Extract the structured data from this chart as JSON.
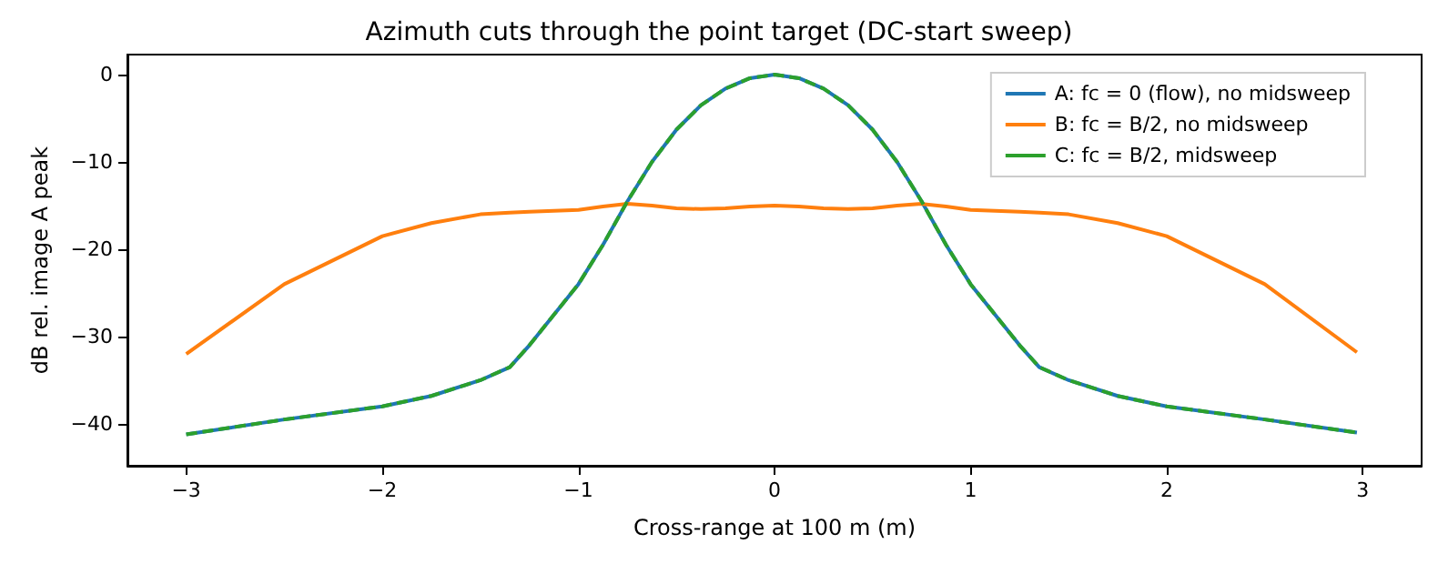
{
  "chart_data": {
    "type": "line",
    "title": "Azimuth cuts through the point target (DC-start sweep)",
    "xlabel": "Cross-range at 100 m (m)",
    "ylabel": "dB rel. image A peak",
    "x": [
      -3,
      -2.5,
      -2,
      -1.75,
      -1.5,
      -1.35,
      -1.25,
      -1,
      -0.875,
      -0.75,
      -0.625,
      -0.5,
      -0.375,
      -0.25,
      -0.125,
      0,
      0.125,
      0.25,
      0.375,
      0.5,
      0.625,
      0.75,
      0.875,
      1,
      1.25,
      1.35,
      1.5,
      1.75,
      2,
      2.5,
      2.97
    ],
    "series": [
      {
        "name": "A: fc = 0 (flow), no midsweep",
        "color": "#1f77b4",
        "line_style": "solid",
        "values": [
          -41.2,
          -39.5,
          -38,
          -36.8,
          -35,
          -33.5,
          -31,
          -24,
          -19.5,
          -14.5,
          -10,
          -6.3,
          -3.5,
          -1.6,
          -0.4,
          0,
          -0.4,
          -1.6,
          -3.5,
          -6.3,
          -10,
          -14.5,
          -19.5,
          -24,
          -31,
          -33.5,
          -35,
          -36.8,
          -38,
          -39.5,
          -41
        ]
      },
      {
        "name": "B: fc = B/2, no midsweep",
        "color": "#ff7f0e",
        "line_style": "solid",
        "values": [
          -32,
          -24,
          -18.5,
          -17,
          -16,
          -15.8,
          -15.7,
          -15.5,
          -15.1,
          -14.8,
          -15,
          -15.3,
          -15.4,
          -15.3,
          -15.1,
          -15,
          -15.1,
          -15.3,
          -15.4,
          -15.3,
          -15,
          -14.8,
          -15.1,
          -15.5,
          -15.7,
          -15.8,
          -16,
          -17,
          -18.5,
          -24,
          -31.8
        ]
      },
      {
        "name": "C: fc = B/2, midsweep",
        "color": "#2ca02c",
        "line_style": "dashed",
        "values": [
          -41.2,
          -39.5,
          -38,
          -36.8,
          -35,
          -33.5,
          -31,
          -24,
          -19.5,
          -14.5,
          -10,
          -6.3,
          -3.5,
          -1.6,
          -0.4,
          0,
          -0.4,
          -1.6,
          -3.5,
          -6.3,
          -10,
          -14.5,
          -19.5,
          -24,
          -31,
          -33.5,
          -35,
          -36.8,
          -38,
          -39.5,
          -41
        ]
      }
    ],
    "xlim": [
      -3.3,
      3.3
    ],
    "xticks": [
      -3,
      -2,
      -1,
      0,
      1,
      2,
      3
    ],
    "ylim": [
      -44.8,
      2.3
    ],
    "yticks": [
      -40,
      -30,
      -20,
      -10,
      0
    ],
    "grid": false,
    "legend": "top right",
    "marker": "none"
  }
}
